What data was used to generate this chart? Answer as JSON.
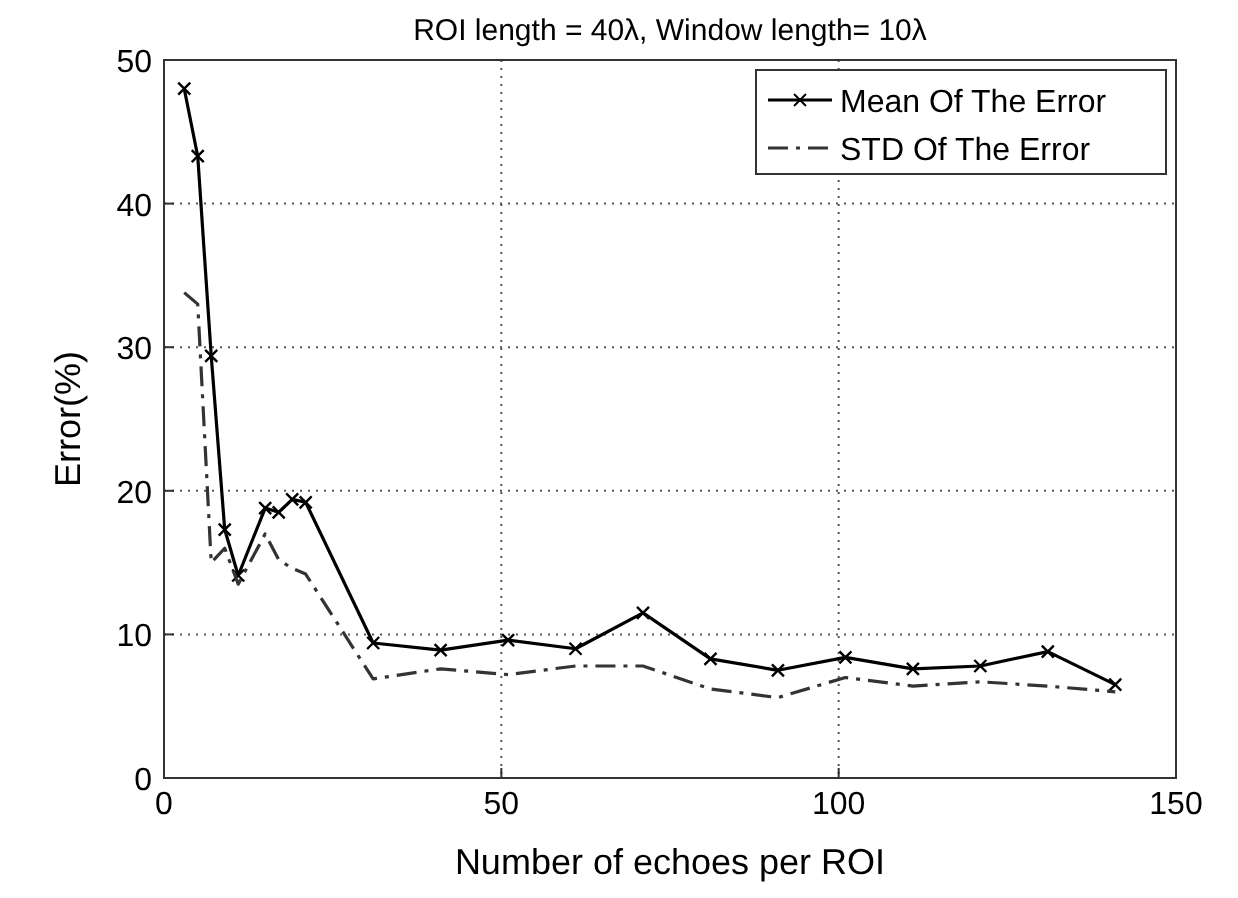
{
  "chart_data": {
    "type": "line",
    "title": "ROI length = 40λ, Window length= 10λ",
    "xlabel": "Number of echoes per ROI",
    "ylabel": "Error(%)",
    "x": [
      3,
      5,
      7,
      9,
      11,
      15,
      17,
      19,
      21,
      31,
      41,
      51,
      61,
      71,
      81,
      91,
      101,
      111,
      121,
      131,
      141
    ],
    "series": [
      {
        "name": "Mean Of The Error",
        "color": "#000000",
        "marker": "cross",
        "line_style": "solid",
        "values": [
          48,
          43.3,
          29.4,
          17.3,
          14.1,
          18.8,
          18.5,
          19.4,
          19.2,
          9.4,
          8.9,
          9.6,
          9.0,
          11.5,
          8.3,
          7.5,
          8.4,
          7.6,
          7.8,
          8.8,
          6.5
        ]
      },
      {
        "name": "STD Of The Error",
        "color": "#333333",
        "marker": "none",
        "line_style": "dashdot",
        "values": [
          33.8,
          33,
          15,
          16,
          13.5,
          17,
          15.2,
          14.6,
          14.2,
          6.9,
          7.6,
          7.2,
          7.8,
          7.8,
          6.2,
          5.6,
          7.0,
          6.4,
          6.7,
          6.4,
          6.0
        ]
      }
    ],
    "xlim": [
      0,
      150
    ],
    "xticks": [
      0,
      50,
      100,
      150
    ],
    "ylim": [
      0,
      50
    ],
    "yticks": [
      0,
      10,
      20,
      30,
      40,
      50
    ],
    "grid": true,
    "legend": "top right"
  }
}
